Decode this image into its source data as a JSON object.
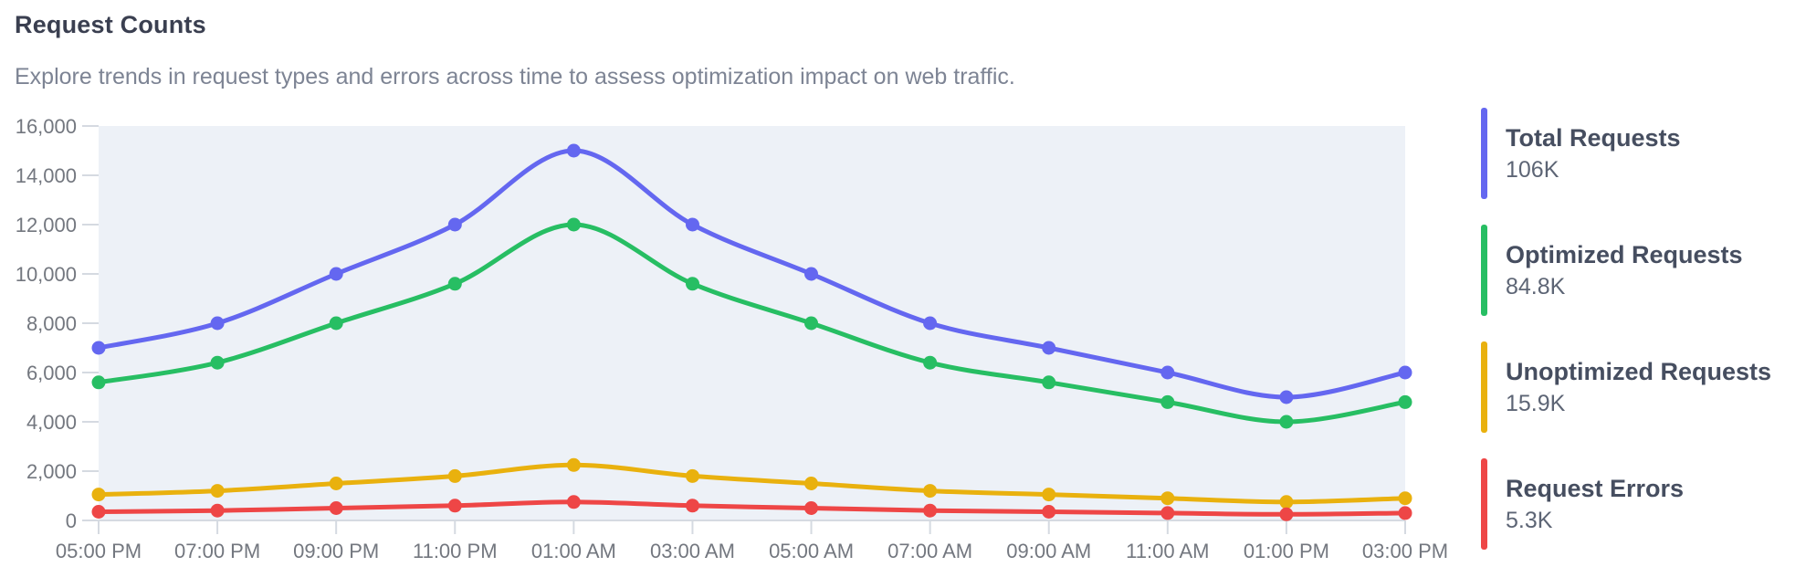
{
  "chart_data": {
    "type": "line",
    "title": "Request Counts",
    "subtitle": "Explore trends in request types and errors across time to assess optimization impact on web traffic.",
    "x": [
      "05:00 PM",
      "07:00 PM",
      "09:00 PM",
      "11:00 PM",
      "01:00 AM",
      "03:00 AM",
      "05:00 AM",
      "07:00 AM",
      "09:00 AM",
      "11:00 AM",
      "01:00 PM",
      "03:00 PM"
    ],
    "series": [
      {
        "name": "Total Requests",
        "total": "106K",
        "color": "#6467F0",
        "values": [
          7000,
          8000,
          10000,
          12000,
          15000,
          12000,
          10000,
          8000,
          7000,
          6000,
          5000,
          6000
        ]
      },
      {
        "name": "Optimized Requests",
        "total": "84.8K",
        "color": "#27BE63",
        "values": [
          5600,
          6400,
          8000,
          9600,
          12000,
          9600,
          8000,
          6400,
          5600,
          4800,
          4000,
          4800
        ]
      },
      {
        "name": "Unoptimized Requests",
        "total": "15.9K",
        "color": "#E9B10E",
        "values": [
          1050,
          1200,
          1500,
          1800,
          2250,
          1800,
          1500,
          1200,
          1050,
          900,
          750,
          900
        ]
      },
      {
        "name": "Request Errors",
        "total": "5.3K",
        "color": "#EE4646",
        "values": [
          350,
          400,
          500,
          600,
          750,
          600,
          500,
          400,
          350,
          300,
          250,
          300
        ]
      }
    ],
    "ylim": [
      0,
      16000
    ],
    "ytick_step": 2000,
    "ytick_labels": [
      "0",
      "2,000",
      "4,000",
      "6,000",
      "8,000",
      "10,000",
      "12,000",
      "14,000",
      "16,000"
    ],
    "smooth": true,
    "grid": false,
    "legend_position": "right",
    "plot_bg": "#EDF1F7",
    "axis_line_color": "#D5DAE1",
    "axis_text_color": "#73777F"
  }
}
